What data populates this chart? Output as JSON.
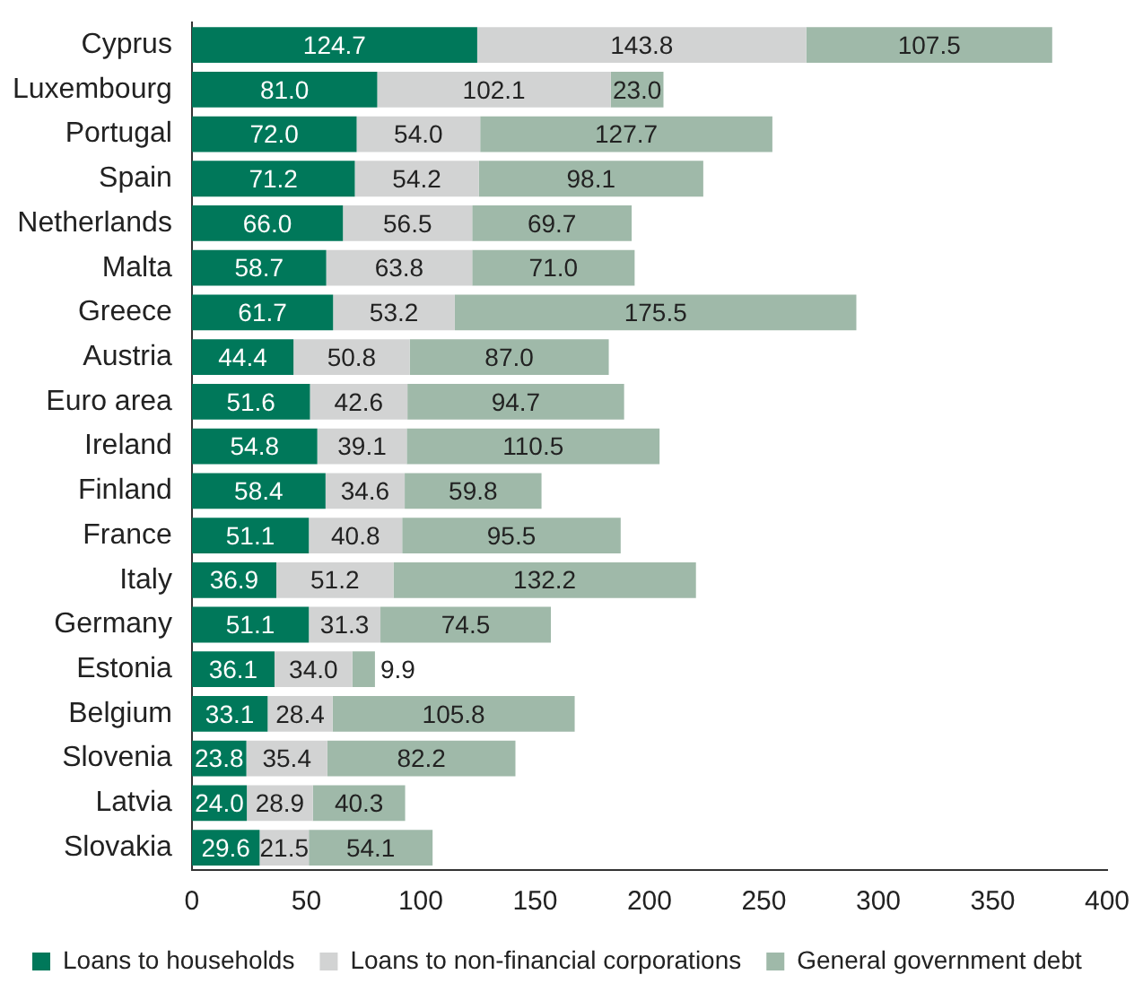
{
  "chart_data": {
    "type": "bar",
    "orientation": "horizontal",
    "stacked": true,
    "grid": false,
    "legend": "bottom",
    "categories": [
      "Cyprus",
      "Luxembourg",
      "Portugal",
      "Spain",
      "Netherlands",
      "Malta",
      "Greece",
      "Austria",
      "Euro area",
      "Ireland",
      "Finland",
      "France",
      "Italy",
      "Germany",
      "Estonia",
      "Belgium",
      "Slovenia",
      "Latvia",
      "Slovakia"
    ],
    "xlim": [
      0,
      400
    ],
    "xticks": [
      0,
      50,
      100,
      150,
      200,
      250,
      300,
      350,
      400
    ],
    "series": [
      {
        "name": "Loans to households",
        "color": "#00785a",
        "values": [
          124.7,
          81.0,
          72.0,
          71.2,
          66.0,
          58.7,
          61.7,
          44.4,
          51.6,
          54.8,
          58.4,
          51.1,
          36.9,
          51.1,
          36.1,
          33.1,
          23.8,
          24.0,
          29.6
        ],
        "value_labels": [
          "124.7",
          "81.0",
          "72.0",
          "71.2",
          "66.0",
          "58.7",
          "61.7",
          "44.4",
          "51.6",
          "54.8",
          "58.4",
          "51.1",
          "36.9",
          "51.1",
          "36.1",
          "33.1",
          "23.8",
          "24.0",
          "29.6"
        ]
      },
      {
        "name": "Loans to non-financial corporations",
        "color": "#d2d3d3",
        "values": [
          143.8,
          102.1,
          54.0,
          54.2,
          56.5,
          63.8,
          53.2,
          50.8,
          42.6,
          39.1,
          34.6,
          40.8,
          51.2,
          31.3,
          34.0,
          28.4,
          35.4,
          28.9,
          21.5
        ],
        "value_labels": [
          "143.8",
          "102.1",
          "54.0",
          "54.2",
          "56.5",
          "63.8",
          "53.2",
          "50.8",
          "42.6",
          "39.1",
          "34.6",
          "40.8",
          "51.2",
          "31.3",
          "34.0",
          "28.4",
          "35.4",
          "28.9",
          "21.5"
        ]
      },
      {
        "name": "General government debt",
        "color": "#9fb9a9",
        "values": [
          107.5,
          23.0,
          127.7,
          98.1,
          69.7,
          71.0,
          175.5,
          87.0,
          94.7,
          110.5,
          59.8,
          95.5,
          132.2,
          74.5,
          9.9,
          105.8,
          82.2,
          40.3,
          54.1
        ],
        "value_labels": [
          "107.5",
          "23.0",
          "127.7",
          "98.1",
          "69.7",
          "71.0",
          "175.5",
          "87.0",
          "94.7",
          "110.5",
          "59.8",
          "95.5",
          "132.2",
          "74.5",
          "9.9",
          "105.8",
          "82.2",
          "40.3",
          "54.1"
        ]
      }
    ]
  }
}
